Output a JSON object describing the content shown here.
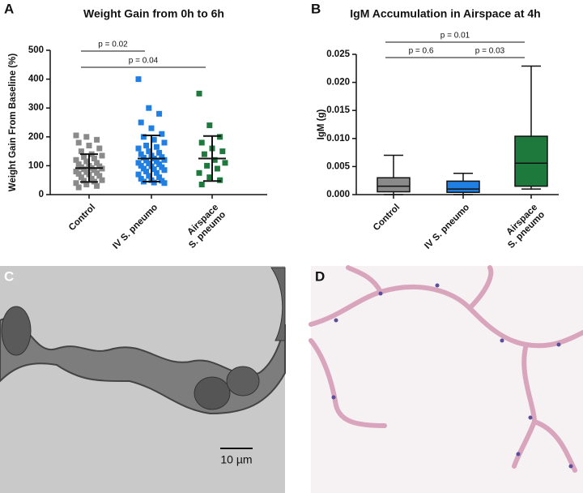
{
  "chart_data": [
    {
      "type": "dotplot",
      "panel_label": "A",
      "title": "Weight Gain from 0h to 6h",
      "y_label": "Weight Gain From Baseline (%)",
      "categories": [
        [
          "Control"
        ],
        [
          "IV S. pneumo"
        ],
        [
          "Airspace",
          "S. pneumo"
        ]
      ],
      "colors": [
        "#8a8a8a",
        "#1f7fe3",
        "#1d7a3c"
      ],
      "points": [
        [
          205,
          200,
          190,
          180,
          170,
          160,
          150,
          140,
          135,
          130,
          125,
          120,
          115,
          110,
          105,
          100,
          98,
          95,
          92,
          90,
          88,
          85,
          80,
          78,
          75,
          72,
          70,
          65,
          60,
          55,
          50,
          48,
          45,
          40,
          35,
          30,
          25
        ],
        [
          400,
          300,
          280,
          250,
          230,
          210,
          200,
          190,
          180,
          170,
          165,
          160,
          150,
          145,
          140,
          135,
          130,
          128,
          125,
          120,
          118,
          115,
          110,
          108,
          105,
          100,
          98,
          95,
          90,
          88,
          85,
          80,
          75,
          70,
          65,
          60,
          55,
          50,
          48,
          45,
          42,
          40
        ],
        [
          350,
          240,
          200,
          180,
          160,
          150,
          140,
          120,
          110,
          100,
          90,
          75,
          60,
          50,
          35
        ]
      ],
      "means": [
        92,
        125,
        125
      ],
      "sds": [
        48,
        80,
        78
      ],
      "ylim": [
        0,
        500
      ],
      "yticks": [
        0,
        100,
        200,
        300,
        400,
        500
      ],
      "annotations": [
        {
          "text": "p = 0.02",
          "from": 0,
          "to": 1
        },
        {
          "text": "p = 0.04",
          "from": 0,
          "to": 2
        }
      ]
    },
    {
      "type": "box",
      "panel_label": "B",
      "title": "IgM Accumulation in Airspace at 4h",
      "y_label": "IgM (g)",
      "categories": [
        [
          "Control"
        ],
        [
          "IV S. pneumo"
        ],
        [
          "Airspace",
          "S. pneumo"
        ]
      ],
      "colors": [
        "#8a8a8a",
        "#1f7fe3",
        "#1d7a3c"
      ],
      "boxes": [
        {
          "min": 0,
          "q1": 0.0005,
          "median": 0.0015,
          "q3": 0.003,
          "max": 0.007
        },
        {
          "min": 0,
          "q1": 0.0004,
          "median": 0.001,
          "q3": 0.0024,
          "max": 0.0038
        },
        {
          "min": 0.001,
          "q1": 0.0015,
          "median": 0.0056,
          "q3": 0.0104,
          "max": 0.0229
        }
      ],
      "ylim": [
        0,
        0.025
      ],
      "yticks": [
        {
          "value": 0,
          "label": "0.000"
        },
        0.005,
        {
          "value": 0.01,
          "label": "0.010"
        },
        0.015,
        {
          "value": 0.02,
          "label": "0.020"
        },
        0.025
      ],
      "annotations": [
        {
          "text": "p = 0.01",
          "from": 0,
          "to": 2
        },
        {
          "text": "p = 0.6",
          "from": 0,
          "to": 1
        },
        {
          "text": "p = 0.03",
          "from": 1,
          "to": 2
        }
      ]
    }
  ],
  "images": [
    {
      "panel_label": "C",
      "scale_bar": "10 µm"
    },
    {
      "panel_label": "D"
    }
  ]
}
